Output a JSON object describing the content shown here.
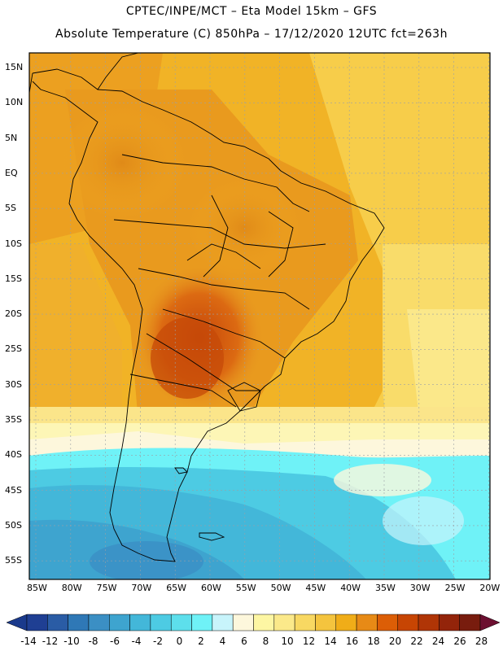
{
  "title_line1": "CPTEC/INPE/MCT –  Eta Model 15km – GFS",
  "title_line2": "Absolute Temperature (C) 850hPa – 17/12/2020 12UTC fct=263h",
  "lat_labels": [
    "15N",
    "10N",
    "5N",
    "EQ",
    "5S",
    "10S",
    "15S",
    "20S",
    "25S",
    "30S",
    "35S",
    "40S",
    "45S",
    "50S",
    "55S"
  ],
  "lon_labels": [
    "85W",
    "80W",
    "75W",
    "70W",
    "65W",
    "60W",
    "55W",
    "50W",
    "45W",
    "40W",
    "35W",
    "30W",
    "25W",
    "20W"
  ],
  "colorbar": {
    "labels": [
      "-14",
      "-12",
      "-10",
      "-8",
      "-6",
      "-4",
      "-2",
      "0",
      "2",
      "4",
      "6",
      "8",
      "10",
      "12",
      "14",
      "16",
      "18",
      "20",
      "22",
      "24",
      "26",
      "28"
    ],
    "colors": [
      "#1f3f93",
      "#2a5ca5",
      "#2f78b6",
      "#3b8fc4",
      "#3ea4cf",
      "#43b7d9",
      "#4dcbe3",
      "#5ddfec",
      "#6ff2f7",
      "#c8f4fb",
      "#fdf7dc",
      "#fdf6a3",
      "#fbe98a",
      "#f8d862",
      "#f4c43e",
      "#f0ad18",
      "#e78a16",
      "#dc5e06",
      "#c74503",
      "#b03506",
      "#93240a",
      "#781c0e"
    ],
    "under_color": "#1a3a8c",
    "over_color": "#6c0f30"
  }
}
